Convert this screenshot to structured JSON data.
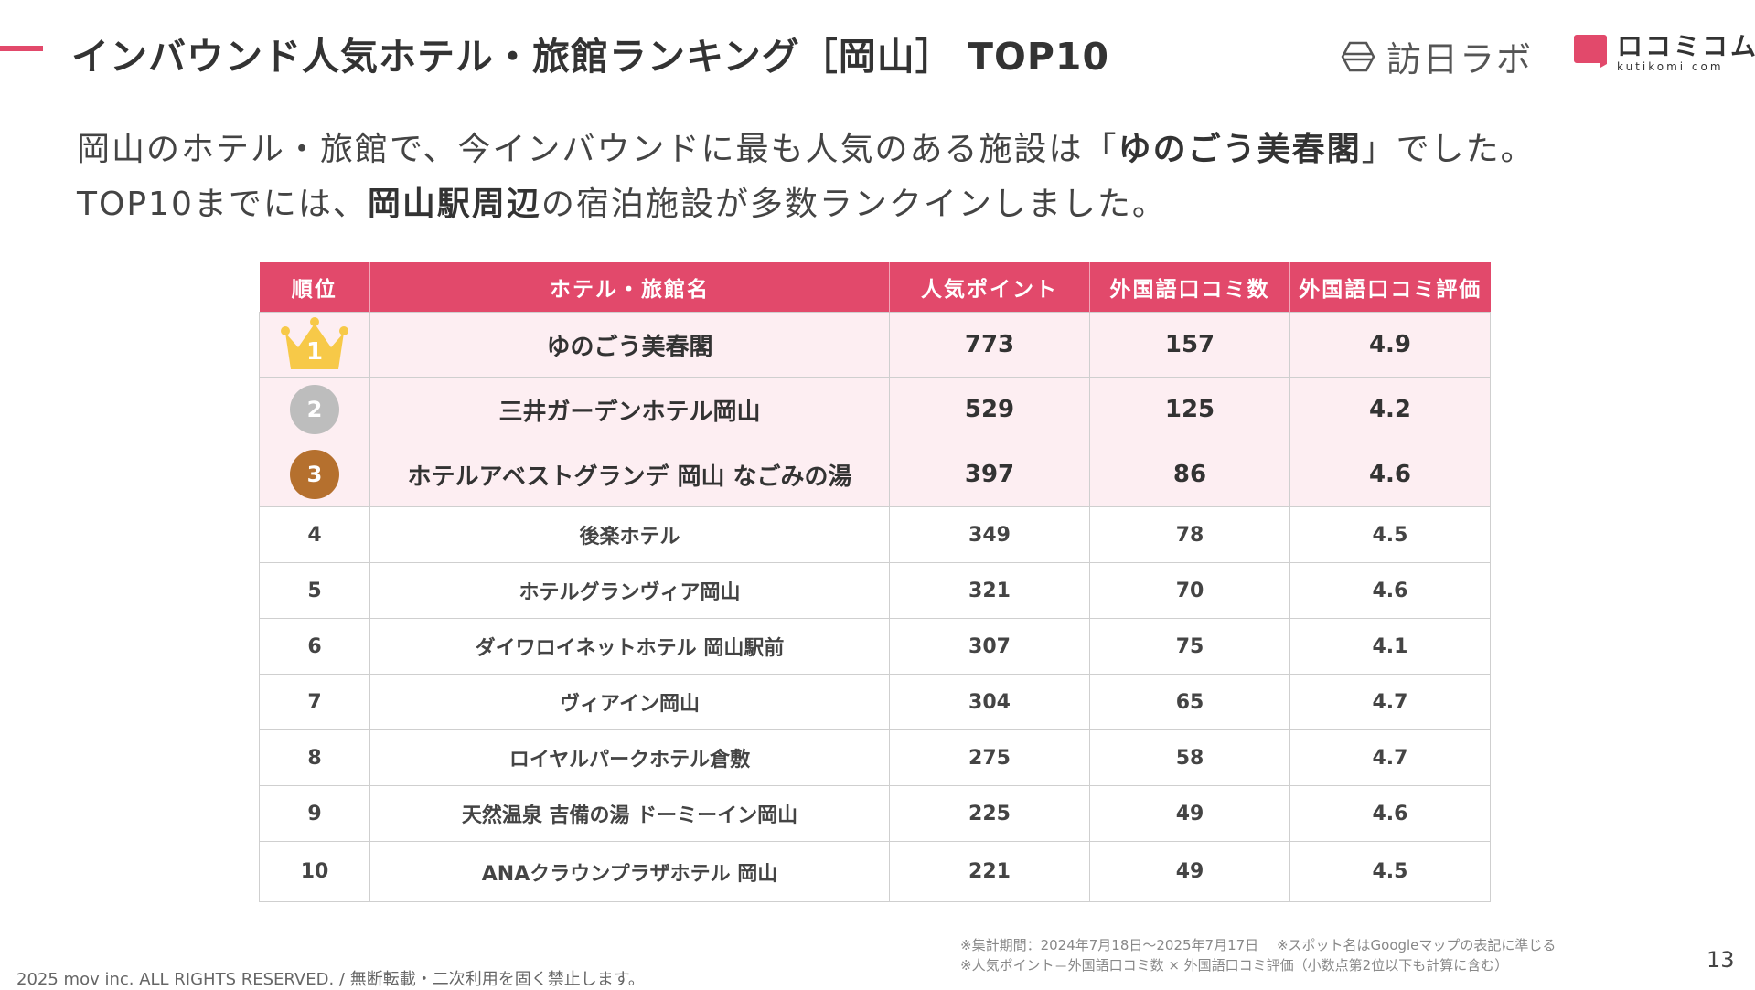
{
  "header": {
    "title": "インバウンド人気ホテル・旅館ランキング［岡山］ TOP10",
    "logo_houni_text": "訪日ラボ",
    "logo_kuchikomi_text": "ロコミコム",
    "logo_kuchikomi_sub": "kutikomi com"
  },
  "lead": {
    "line1_a": "岡山のホテル・旅館で、今インバウンドに最も人気のある施設は「",
    "line1_bold": "ゆのごう美春閣",
    "line1_b": "」でした。",
    "line2_a": "TOP10までには、",
    "line2_bold": "岡山駅周辺",
    "line2_b": "の宿泊施設が多数ランクインしました。"
  },
  "table": {
    "headers": [
      "順位",
      "ホテル・旅館名",
      "人気ポイント",
      "外国語口コミ数",
      "外国語口コミ評価"
    ],
    "rows": [
      {
        "rank": "1",
        "name": "ゆのごう美春閣",
        "points": "773",
        "reviews": "157",
        "rating": "4.9"
      },
      {
        "rank": "2",
        "name": "三井ガーデンホテル岡山",
        "points": "529",
        "reviews": "125",
        "rating": "4.2"
      },
      {
        "rank": "3",
        "name": "ホテルアベストグランデ 岡山 なごみの湯",
        "points": "397",
        "reviews": "86",
        "rating": "4.6"
      },
      {
        "rank": "4",
        "name": "後楽ホテル",
        "points": "349",
        "reviews": "78",
        "rating": "4.5"
      },
      {
        "rank": "5",
        "name": "ホテルグランヴィア岡山",
        "points": "321",
        "reviews": "70",
        "rating": "4.6"
      },
      {
        "rank": "6",
        "name": "ダイワロイネットホテル 岡山駅前",
        "points": "307",
        "reviews": "75",
        "rating": "4.1"
      },
      {
        "rank": "7",
        "name": "ヴィアイン岡山",
        "points": "304",
        "reviews": "65",
        "rating": "4.7"
      },
      {
        "rank": "8",
        "name": "ロイヤルパークホテル倉敷",
        "points": "275",
        "reviews": "58",
        "rating": "4.7"
      },
      {
        "rank": "9",
        "name": "天然温泉 吉備の湯 ドーミーイン岡山",
        "points": "225",
        "reviews": "49",
        "rating": "4.6"
      },
      {
        "rank": "10",
        "name": "ANAクラウンプラザホテル 岡山",
        "points": "221",
        "reviews": "49",
        "rating": "4.5"
      }
    ]
  },
  "notes": {
    "line1": "※集計期間：2024年7月18日〜2025年7月17日　 ※スポット名はGoogleマップの表記に準じる",
    "line2": "※人気ポイント＝外国語口コミ数 × 外国語口コミ評価（小数点第2位以下も計算に含む）"
  },
  "footer": {
    "copyright": "2025 mov inc. ALL RIGHTS RESERVED. / 無断転載・二次利用を固く禁止します。",
    "page_number": "13"
  },
  "colors": {
    "accent": "#e2496b",
    "top_row_bg": "#fdeef2",
    "gold": "#f7c948",
    "silver": "#bdbdbd",
    "bronze": "#b5702e"
  },
  "icons": {
    "rank1": "crown-icon",
    "rank2": "silver-medal-icon",
    "rank3": "bronze-medal-icon",
    "houni_logo": "hexagon-logo-icon",
    "kuchikomi_logo": "speech-square-logo-icon"
  }
}
